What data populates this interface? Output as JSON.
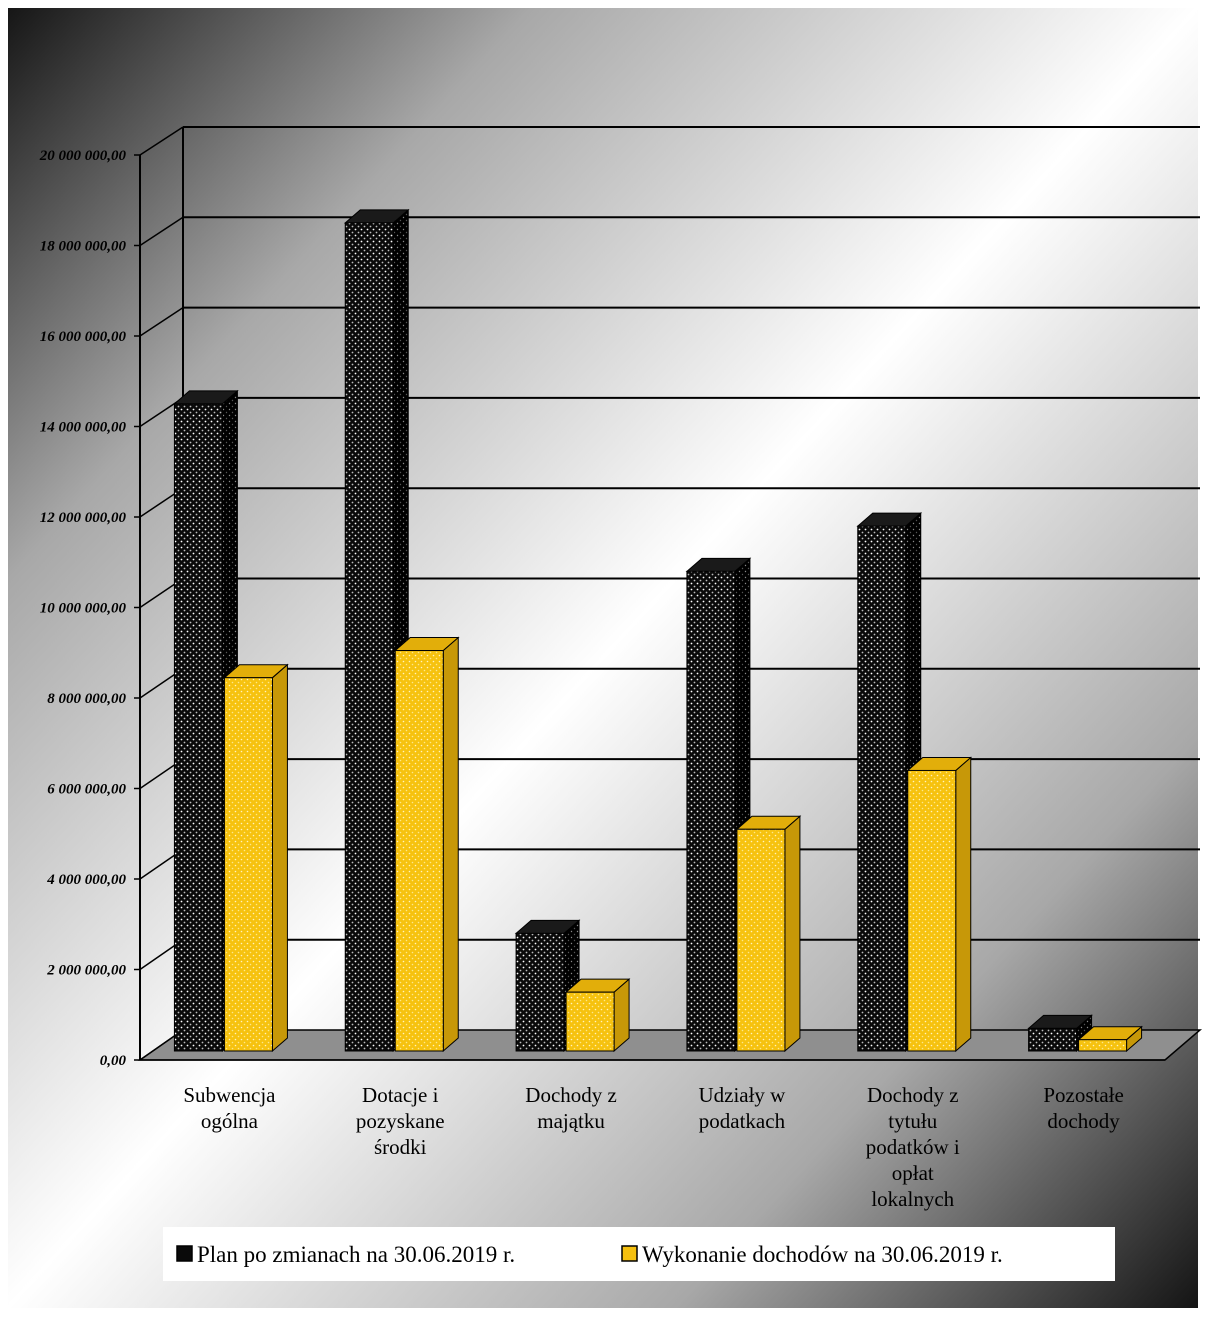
{
  "chart_data": {
    "type": "bar",
    "title": "",
    "xlabel": "",
    "ylabel": "",
    "ylim": [
      0,
      20000000
    ],
    "yticks": [
      "0,00",
      "2 000 000,00",
      "4 000 000,00",
      "6 000 000,00",
      "8 000 000,00",
      "10 000 000,00",
      "12 000 000,00",
      "14 000 000,00",
      "16 000 000,00",
      "18 000 000,00",
      "20 000 000,00"
    ],
    "ytick_values": [
      0,
      2000000,
      4000000,
      6000000,
      8000000,
      10000000,
      12000000,
      14000000,
      16000000,
      18000000,
      20000000
    ],
    "grid": true,
    "legend_position": "bottom",
    "categories": [
      [
        "Subwencja",
        "ogólna"
      ],
      [
        "Dotacje i",
        "pozyskane",
        "środki"
      ],
      [
        "Dochody z",
        "majątku"
      ],
      [
        "Udziały w",
        "podatkach"
      ],
      [
        "Dochody z",
        "tytułu",
        "podatków i",
        "opłat",
        "lokalnych"
      ],
      [
        "Pozostałe",
        "dochody"
      ]
    ],
    "series": [
      {
        "name": "Plan po zmianach na 30.06.2019 r.",
        "color": "#0a0a0a",
        "values": [
          14300000,
          18300000,
          2600000,
          10600000,
          11600000,
          500000
        ]
      },
      {
        "name": "Wykonanie dochodów na 30.06.2019 r.",
        "color": "#f5c010",
        "values": [
          8250000,
          8850000,
          1300000,
          4900000,
          6200000,
          250000
        ]
      }
    ]
  }
}
